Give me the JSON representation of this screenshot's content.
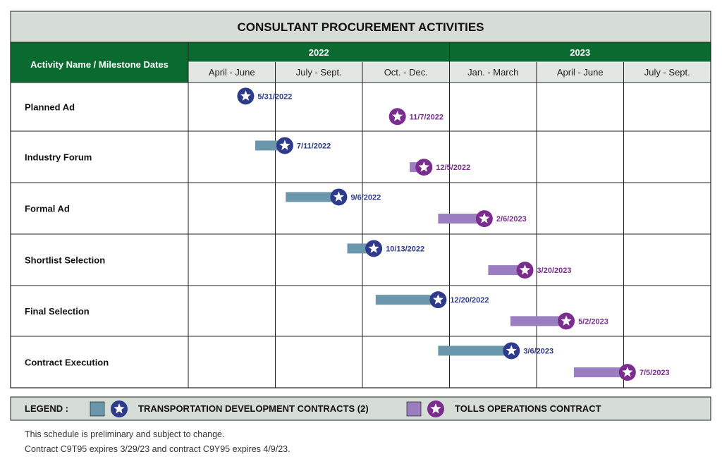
{
  "chart_data": {
    "type": "gantt",
    "title": "CONSULTANT PROCUREMENT ACTIVITIES",
    "row_header": "Activity Name / Milestone Dates",
    "years": [
      {
        "label": "2022",
        "start": "2022-04-01",
        "end": "2023-01-01"
      },
      {
        "label": "2023",
        "start": "2023-01-01",
        "end": "2023-10-01"
      }
    ],
    "quarters": [
      {
        "label": "April - June",
        "start": "2022-04-01"
      },
      {
        "label": "July - Sept.",
        "start": "2022-07-01"
      },
      {
        "label": "Oct. - Dec.",
        "start": "2022-10-01"
      },
      {
        "label": "Jan. - March",
        "start": "2023-01-01"
      },
      {
        "label": "April - June",
        "start": "2023-04-01"
      },
      {
        "label": "July - Sept.",
        "start": "2023-07-01"
      }
    ],
    "end_date": "2023-10-01",
    "series": [
      {
        "key": "tdc",
        "color": "#6a97ab",
        "star_color": "#2e3a8c",
        "label_color": "#2e3a8c"
      },
      {
        "key": "toc",
        "color": "#9b7ec0",
        "star_color": "#7a2d8f",
        "label_color": "#7a2d8f"
      }
    ],
    "activities": [
      {
        "name": "Planned Ad",
        "tdc": {
          "start": null,
          "milestone": "2022-05-31",
          "label": "5/31/2022"
        },
        "toc": {
          "start": null,
          "milestone": "2022-11-07",
          "label": "11/7/2022"
        }
      },
      {
        "name": "Industry Forum",
        "tdc": {
          "start": "2022-06-10",
          "milestone": "2022-07-11",
          "label": "7/11/2022"
        },
        "toc": {
          "start": "2022-11-20",
          "milestone": "2022-12-05",
          "label": "12/5/2022"
        }
      },
      {
        "name": "Formal Ad",
        "tdc": {
          "start": "2022-07-12",
          "milestone": "2022-09-06",
          "label": "9/6/2022"
        },
        "toc": {
          "start": "2022-12-20",
          "milestone": "2023-02-06",
          "label": "2/6/2023"
        }
      },
      {
        "name": "Shortlist Selection",
        "tdc": {
          "start": "2022-09-15",
          "milestone": "2022-10-13",
          "label": "10/13/2022"
        },
        "toc": {
          "start": "2023-02-10",
          "milestone": "2023-03-20",
          "label": "3/20/2023"
        }
      },
      {
        "name": "Final Selection",
        "tdc": {
          "start": "2022-10-15",
          "milestone": "2022-12-20",
          "label": "12/20/2022"
        },
        "toc": {
          "start": "2023-03-05",
          "milestone": "2023-05-02",
          "label": "5/2/2023"
        }
      },
      {
        "name": "Contract Execution",
        "tdc": {
          "start": "2022-12-20",
          "milestone": "2023-03-06",
          "label": "3/6/2023"
        },
        "toc": {
          "start": "2023-05-10",
          "milestone": "2023-07-05",
          "label": "7/5/2023"
        }
      }
    ],
    "legend": {
      "title": "LEGEND :",
      "items": [
        {
          "series": "tdc",
          "label": "TRANSPORTATION DEVELOPMENT CONTRACTS (2)"
        },
        {
          "series": "toc",
          "label": "TOLLS OPERATIONS CONTRACT"
        }
      ]
    }
  },
  "notes": [
    "This schedule is preliminary and subject to change.",
    "Contract C9T95 expires 3/29/23 and contract C9Y95 expires 4/9/23."
  ],
  "colors": {
    "title_bg": "#d6ddd7",
    "header_green": "#0a6a2f",
    "quarter_bg": "#e3e7e3",
    "grid": "#222222"
  }
}
